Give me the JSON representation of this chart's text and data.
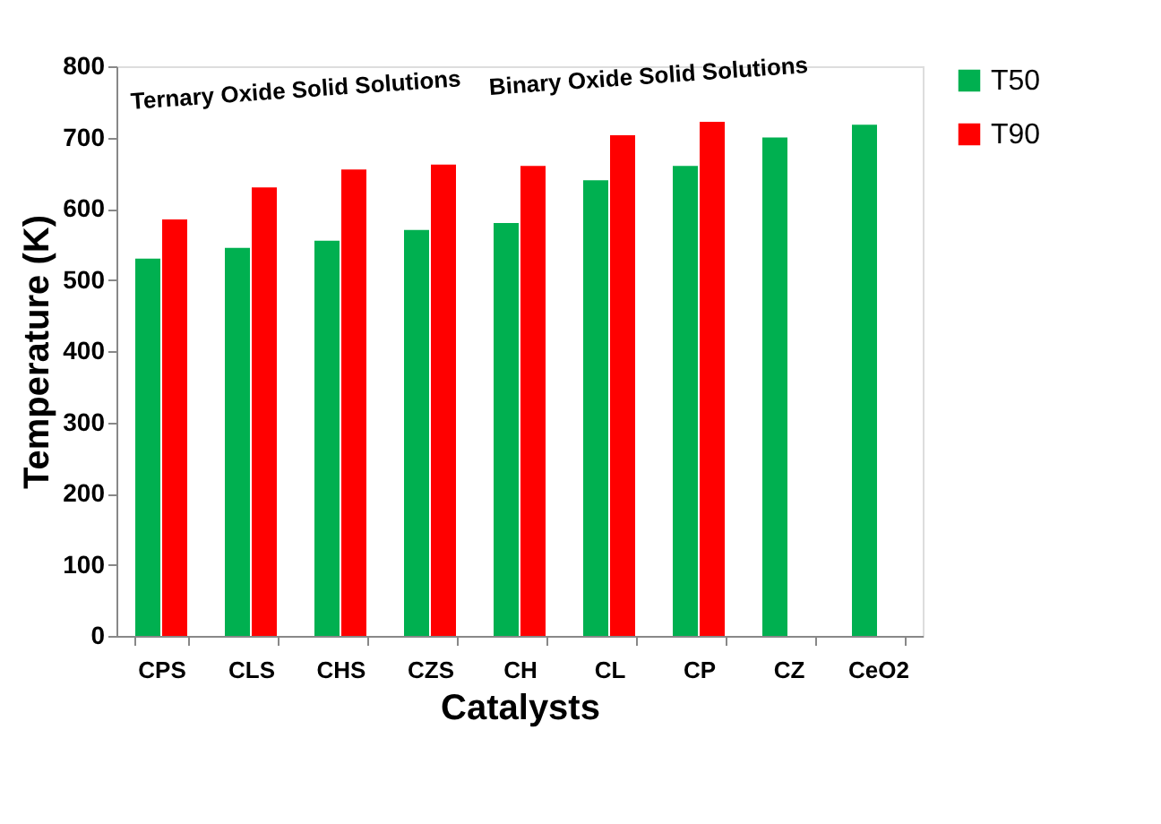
{
  "chart_data": {
    "type": "bar",
    "xlabel": "Catalysts",
    "ylabel": "Temperature (K)",
    "categories": [
      "CPS",
      "CLS",
      "CHS",
      "CZS",
      "CH",
      "CL",
      "CP",
      "CZ",
      "CeO2"
    ],
    "series": [
      {
        "name": "T50",
        "color": "#00b050",
        "values": [
          530,
          545,
          555,
          570,
          580,
          640,
          660,
          700,
          718
        ]
      },
      {
        "name": "T90",
        "color": "#ff0000",
        "values": [
          585,
          630,
          655,
          662,
          660,
          703,
          722,
          null,
          null
        ]
      }
    ],
    "ylim": [
      0,
      800
    ],
    "yticks": [
      0,
      100,
      200,
      300,
      400,
      500,
      600,
      700,
      800
    ],
    "annotations": [
      "Ternary Oxide Solid Solutions",
      "Binary Oxide Solid Solutions"
    ],
    "grid": false,
    "legend": "top right"
  }
}
